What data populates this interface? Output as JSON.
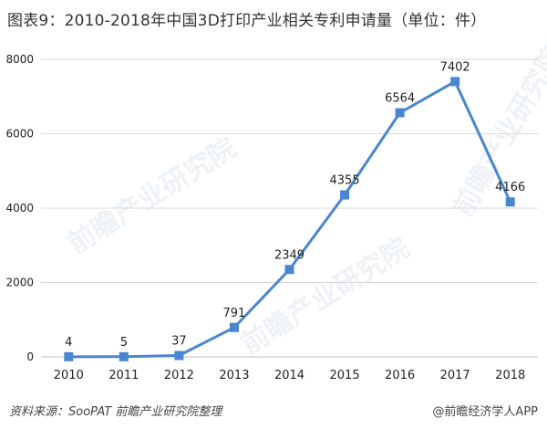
{
  "title": "图表9：2010-2018年中国3D打印产业相关专利申请量（单位：件）",
  "footer": {
    "source": "资料来源：SooPAT 前瞻产业研究院整理",
    "brand": "@前瞻经济学人APP"
  },
  "watermark": "前瞻产业研究院",
  "colors": {
    "line": "#4a86cf",
    "marker": "#4a86cf",
    "grid": "#d9d9d9",
    "text": "#222222"
  },
  "chart_data": {
    "type": "line",
    "categories": [
      "2010",
      "2011",
      "2012",
      "2013",
      "2014",
      "2015",
      "2016",
      "2017",
      "2018"
    ],
    "values": [
      4,
      5,
      37,
      791,
      2349,
      4355,
      6564,
      7402,
      4166
    ],
    "data_labels": [
      "4",
      "5",
      "37",
      "791",
      "2349",
      "4355",
      "6564",
      "7402",
      "4166"
    ],
    "yticks": [
      "0",
      "2000",
      "4000",
      "6000",
      "8000"
    ],
    "ylim": [
      0,
      8000
    ],
    "grid": true,
    "legend": "none"
  }
}
